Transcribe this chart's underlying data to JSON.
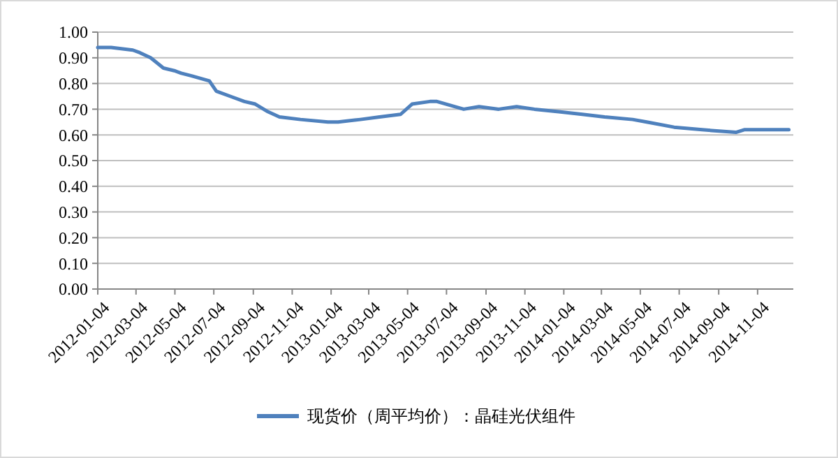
{
  "chart_data": {
    "type": "line",
    "x": [
      "2012-01-04",
      "2012-01-25",
      "2012-02-28",
      "2012-03-10",
      "2012-03-27",
      "2012-04-16",
      "2012-05-03",
      "2012-05-14",
      "2012-05-30",
      "2012-06-27",
      "2012-07-08",
      "2012-07-30",
      "2012-08-21",
      "2012-09-07",
      "2012-09-27",
      "2012-10-15",
      "2012-11-17",
      "2012-12-30",
      "2013-01-15",
      "2013-02-19",
      "2013-03-21",
      "2013-04-23",
      "2013-05-11",
      "2013-06-08",
      "2013-06-19",
      "2013-07-31",
      "2013-08-24",
      "2013-09-24",
      "2013-10-22",
      "2013-11-19",
      "2013-12-27",
      "2014-02-02",
      "2014-03-09",
      "2014-04-22",
      "2014-05-14",
      "2014-06-26",
      "2014-08-09",
      "2014-10-01",
      "2014-10-14",
      "2014-11-27",
      "2014-12-23"
    ],
    "series": [
      {
        "name": "现货价（周平均价）：晶硅光伏组件",
        "color": "#4f81bd",
        "values": [
          0.94,
          0.94,
          0.93,
          0.92,
          0.9,
          0.86,
          0.85,
          0.84,
          0.83,
          0.81,
          0.77,
          0.75,
          0.73,
          0.72,
          0.69,
          0.67,
          0.66,
          0.65,
          0.65,
          0.66,
          0.67,
          0.68,
          0.72,
          0.73,
          0.73,
          0.7,
          0.71,
          0.7,
          0.71,
          0.7,
          0.69,
          0.68,
          0.67,
          0.66,
          0.65,
          0.63,
          0.62,
          0.61,
          0.62,
          0.62,
          0.62
        ]
      }
    ],
    "xlim": [
      "2012-01-04",
      "2014-12-30"
    ],
    "xticks": [
      "2012-01-04",
      "2012-03-04",
      "2012-05-04",
      "2012-07-04",
      "2012-09-04",
      "2012-11-04",
      "2013-01-04",
      "2013-03-04",
      "2013-05-04",
      "2013-07-04",
      "2013-09-04",
      "2013-11-04",
      "2014-01-04",
      "2014-03-04",
      "2014-05-04",
      "2014-07-04",
      "2014-09-04",
      "2014-11-04"
    ],
    "ylim": [
      0,
      1
    ],
    "yticks": [
      {
        "value": 0,
        "label": "0.00"
      },
      {
        "value": 0.1,
        "label": "0.10"
      },
      {
        "value": 0.2,
        "label": "0.20"
      },
      {
        "value": 0.3,
        "label": "0.30"
      },
      {
        "value": 0.4,
        "label": "0.40"
      },
      {
        "value": 0.5,
        "label": "0.50"
      },
      {
        "value": 0.6,
        "label": "0.60"
      },
      {
        "value": 0.7,
        "label": "0.70"
      },
      {
        "value": 0.8,
        "label": "0.80"
      },
      {
        "value": 0.9,
        "label": "0.90"
      },
      {
        "value": 1,
        "label": "1.00"
      }
    ],
    "grid": "y",
    "legend": "bottom",
    "marker": "none",
    "line_style": "solid"
  }
}
